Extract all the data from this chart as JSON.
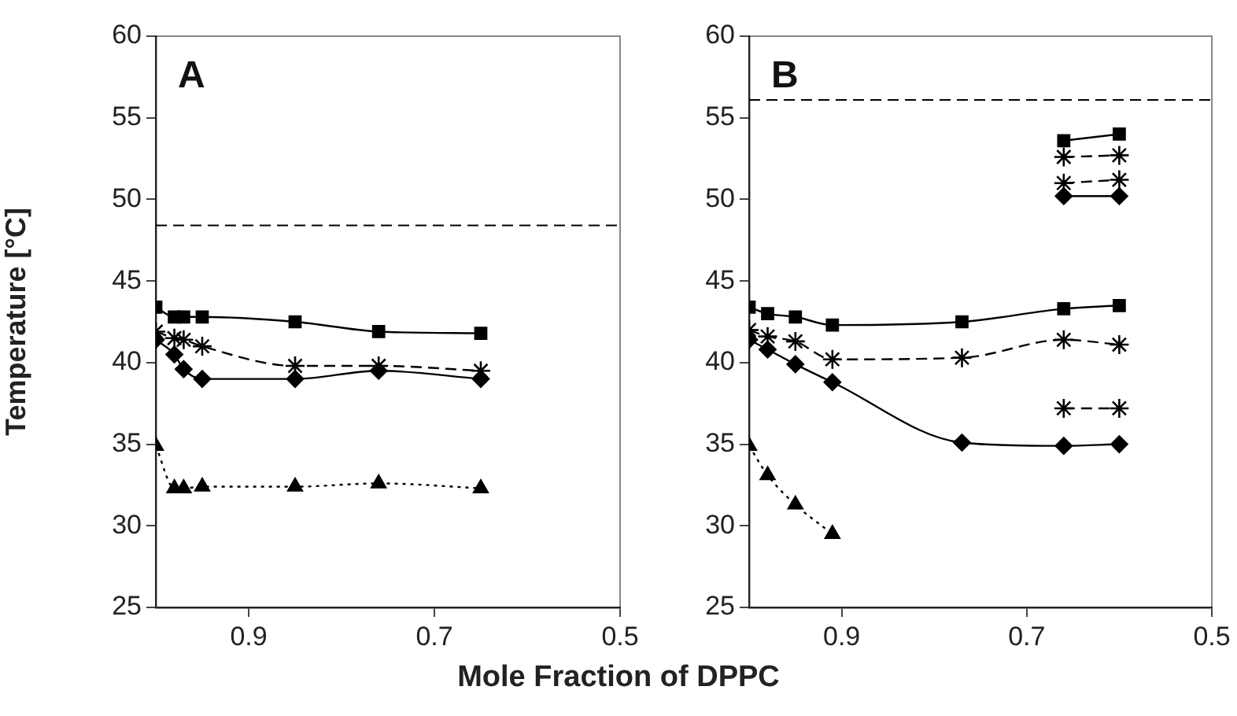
{
  "chart_data": [
    {
      "type": "line",
      "annotations": [
        "A"
      ],
      "xlabel": "Mole Fraction of DPPC",
      "ylabel": "Temperature [°C]",
      "xlim": [
        1.0,
        0.5
      ],
      "xticks": [
        0.9,
        0.7,
        0.5
      ],
      "ylim": [
        25,
        60
      ],
      "yticks": [
        25,
        30,
        35,
        40,
        45,
        50,
        55,
        60
      ],
      "grid": false,
      "legend": false,
      "ref_lines": [
        {
          "axis": "y",
          "value": 48.4,
          "color": "#000000",
          "line_style": "dashed"
        }
      ],
      "x": [
        1.0,
        0.98,
        0.97,
        0.95,
        0.85,
        0.76,
        0.65
      ],
      "series": [
        {
          "color": "#000000",
          "marker": "square",
          "line_style": "solid",
          "values": [
            43.4,
            42.8,
            42.8,
            42.8,
            42.5,
            41.9,
            41.8
          ]
        },
        {
          "color": "#000000",
          "marker": "cross",
          "line_style": "dashed",
          "values": [
            41.9,
            41.5,
            41.4,
            41.0,
            39.8,
            39.8,
            39.5
          ]
        },
        {
          "color": "#000000",
          "marker": "diamond",
          "line_style": "solid",
          "values": [
            41.4,
            40.5,
            39.6,
            39.0,
            39.0,
            39.5,
            39.0
          ]
        },
        {
          "color": "#000000",
          "marker": "triangle",
          "line_style": "dotted",
          "values": [
            34.9,
            32.3,
            32.3,
            32.4,
            32.4,
            32.6,
            32.3
          ]
        }
      ]
    },
    {
      "type": "line",
      "annotations": [
        "B"
      ],
      "xlim": [
        1.0,
        0.5
      ],
      "xticks": [
        0.9,
        0.7,
        0.5
      ],
      "ylim": [
        25,
        60
      ],
      "yticks": [
        25,
        30,
        35,
        40,
        45,
        50,
        55,
        60
      ],
      "grid": false,
      "legend": false,
      "ref_lines": [
        {
          "axis": "y",
          "value": 56.1,
          "color": "#000000",
          "line_style": "dashed"
        }
      ],
      "x": [
        1.0,
        0.98,
        0.95,
        0.91,
        0.77,
        0.66,
        0.6
      ],
      "series": [
        {
          "color": "#000000",
          "marker": "square",
          "line_style": "solid",
          "values": [
            43.4,
            43.0,
            42.8,
            42.3,
            42.5,
            43.3,
            43.5
          ]
        },
        {
          "color": "#000000",
          "marker": "cross",
          "line_style": "dashed",
          "values": [
            42.0,
            41.6,
            41.3,
            40.2,
            40.3,
            41.4,
            41.1
          ]
        },
        {
          "color": "#000000",
          "marker": "diamond",
          "line_style": "solid",
          "values": [
            41.4,
            40.8,
            39.9,
            38.8,
            35.1,
            34.9,
            35.0
          ]
        },
        {
          "color": "#000000",
          "marker": "triangle",
          "line_style": "dotted",
          "values": [
            34.9,
            33.1,
            31.3,
            29.5,
            null,
            null,
            null
          ]
        },
        {
          "color": "#000000",
          "marker": "cross",
          "line_style": "dashed",
          "values": [
            null,
            null,
            null,
            null,
            null,
            37.2,
            37.2
          ]
        },
        {
          "color": "#000000",
          "marker": "square",
          "line_style": "solid",
          "values": [
            null,
            null,
            null,
            null,
            null,
            53.6,
            54.0
          ]
        },
        {
          "color": "#000000",
          "marker": "cross",
          "line_style": "dashed",
          "values": [
            null,
            null,
            null,
            null,
            null,
            52.6,
            52.7
          ]
        },
        {
          "color": "#000000",
          "marker": "cross",
          "line_style": "dashed",
          "values": [
            null,
            null,
            null,
            null,
            null,
            51.0,
            51.2
          ]
        },
        {
          "color": "#000000",
          "marker": "diamond",
          "line_style": "solid",
          "values": [
            null,
            null,
            null,
            null,
            null,
            50.2,
            50.2
          ]
        }
      ]
    }
  ]
}
